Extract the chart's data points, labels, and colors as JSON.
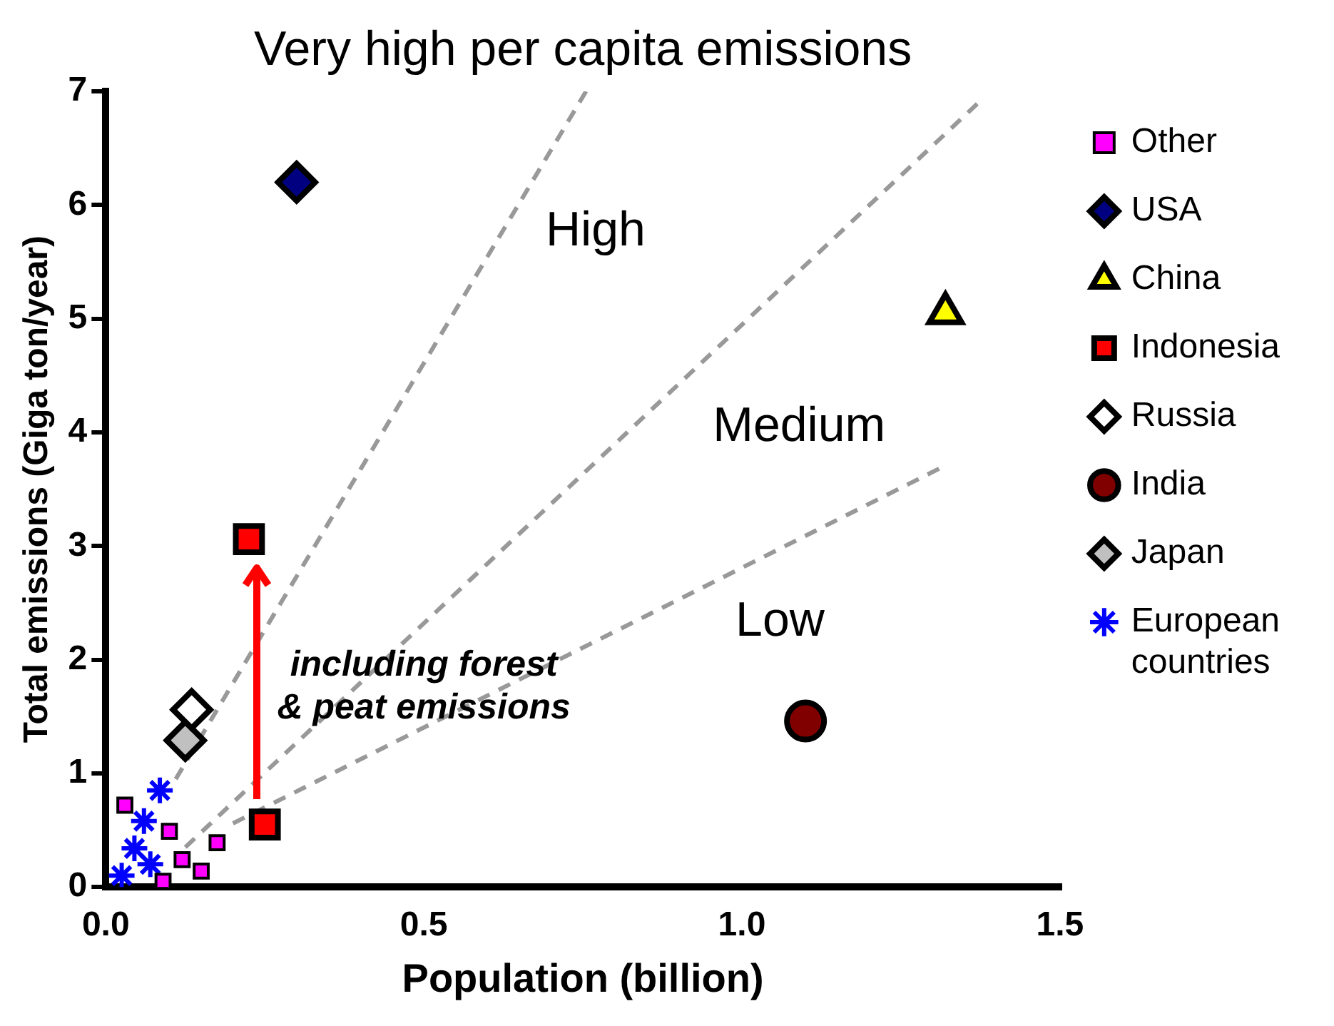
{
  "chart_data": {
    "type": "scatter",
    "xlabel": "Population (billion)",
    "ylabel": "Total emissions (Giga ton/year)",
    "xlim": [
      0,
      1.5
    ],
    "xticks": [
      {
        "value": 0,
        "label": "0.0"
      },
      {
        "value": 0.5,
        "label": "0.5"
      },
      {
        "value": 1,
        "label": "1.0"
      },
      {
        "value": 1.5,
        "label": "1.5"
      }
    ],
    "ylim": [
      0,
      7
    ],
    "yticks": [
      0,
      1,
      2,
      3,
      4,
      5,
      6,
      7
    ],
    "grid": false,
    "legend": "right",
    "series": [
      {
        "name": "Other",
        "color": "#ff00ff",
        "marker": "square",
        "x": [
          0.03,
          0.1,
          0.175,
          0.15,
          0.09,
          0.12
        ],
        "values": [
          0.72,
          0.49,
          0.39,
          0.14,
          0.05,
          0.24
        ]
      },
      {
        "name": "USA",
        "color": "#000080",
        "marker": "diamond",
        "x": [
          0.3
        ],
        "values": [
          6.2
        ]
      },
      {
        "name": "China",
        "color": "#ffff00",
        "marker": "triangle",
        "x": [
          1.32
        ],
        "values": [
          5.05
        ]
      },
      {
        "name": "Indonesia",
        "color": "#ff0000",
        "marker": "square",
        "x": [
          0.225,
          0.25
        ],
        "values": [
          3.06,
          0.55
        ]
      },
      {
        "name": "Russia",
        "color": "#ffffff",
        "marker": "diamond",
        "x": [
          0.135
        ],
        "values": [
          1.56
        ]
      },
      {
        "name": "India",
        "color": "#800000",
        "marker": "circle",
        "x": [
          1.1
        ],
        "values": [
          1.46
        ]
      },
      {
        "name": "Japan",
        "color": "#c0c0c0",
        "marker": "diamond",
        "x": [
          0.125
        ],
        "values": [
          1.29
        ]
      },
      {
        "name": "European countries",
        "color": "#0000ff",
        "marker": "cross",
        "x": [
          0.025,
          0.045,
          0.06,
          0.085,
          0.07
        ],
        "values": [
          0.1,
          0.34,
          0.58,
          0.85,
          0.2
        ]
      },
      {
        "type": "line",
        "color": "#999999",
        "line_style": "dashed",
        "marker": "none",
        "x": [
          0.11,
          0.755
        ],
        "values": [
          0.95,
          7
        ]
      },
      {
        "type": "line",
        "color": "#999999",
        "line_style": "dashed",
        "marker": "none",
        "x": [
          0.125,
          1.37
        ],
        "values": [
          0.35,
          6.89
        ]
      },
      {
        "type": "line",
        "color": "#999999",
        "line_style": "dashed",
        "marker": "none",
        "x": [
          0.2,
          1.31
        ],
        "values": [
          0.56,
          3.68
        ]
      }
    ],
    "annotations": [
      "Very high per capita emissions",
      "High",
      "Medium",
      "Low",
      "including forest & peat emissions"
    ]
  }
}
